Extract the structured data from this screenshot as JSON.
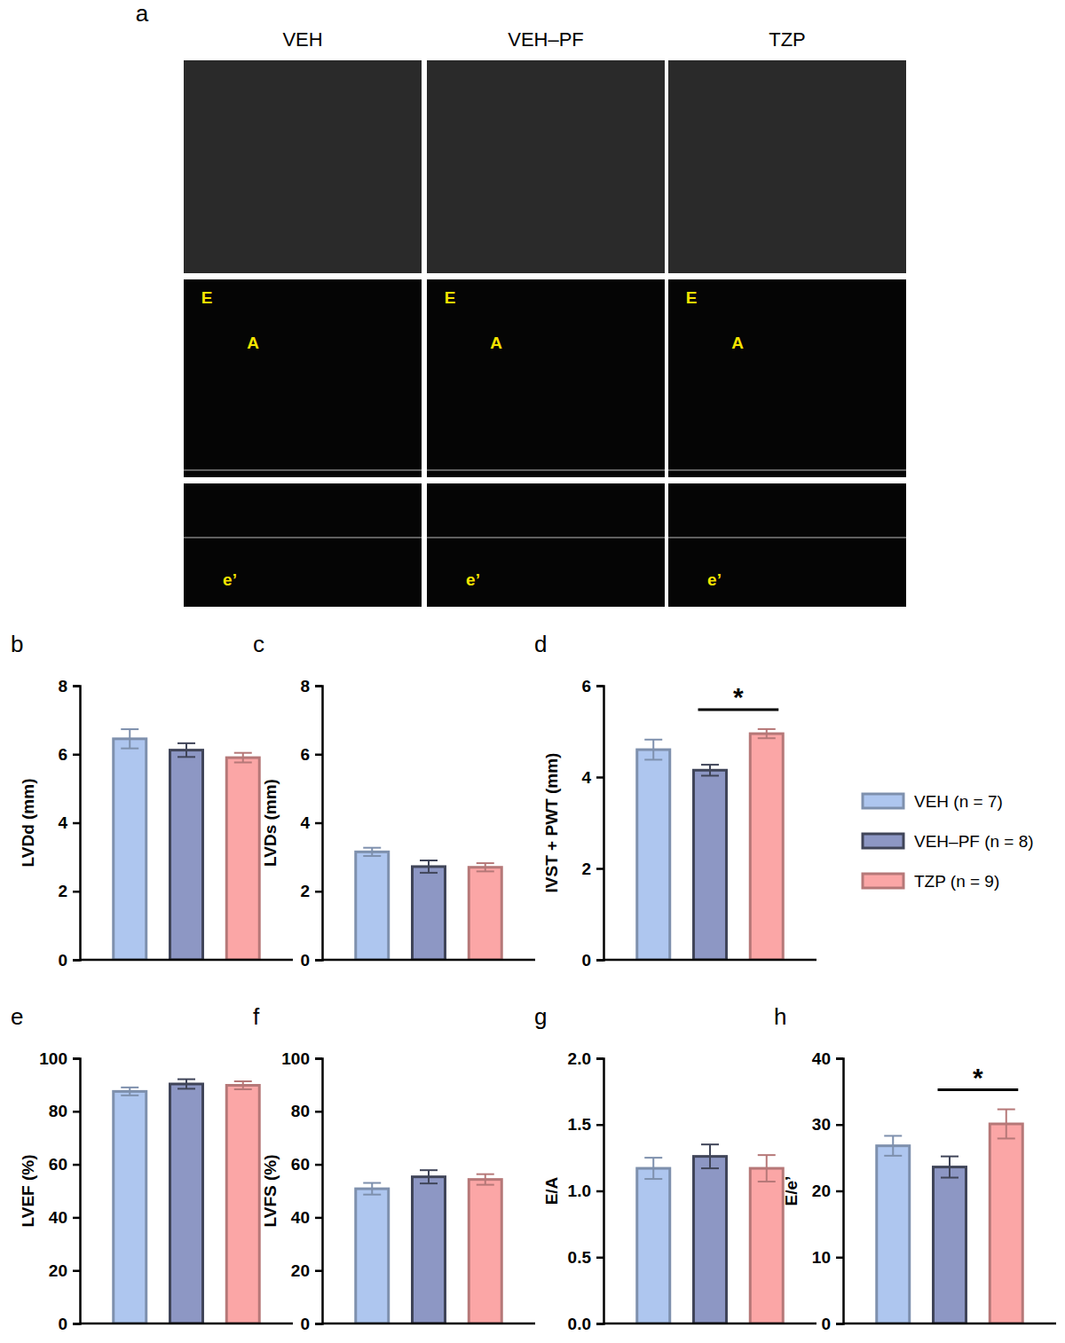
{
  "panel_a": {
    "letter": "a",
    "columns": [
      "VEH",
      "VEH–PF",
      "TZP"
    ],
    "wave_labels": [
      "E",
      "A",
      "e’"
    ]
  },
  "groups": [
    {
      "name": "VEH (n = 7)",
      "color": "#aec6ef"
    },
    {
      "name": "VEH–PF (n = 8)",
      "color": "#8d97c4"
    },
    {
      "name": "TZP (n = 9)",
      "color": "#fba6a6"
    }
  ],
  "chart_data": [
    {
      "type": "bar",
      "panel": "b",
      "y_label": "LVDd (mm)",
      "values": [
        6.45,
        6.12,
        5.9
      ],
      "errors": [
        0.28,
        0.2,
        0.14
      ],
      "ylim": [
        0,
        8
      ],
      "yticks": [
        0,
        2,
        4,
        6,
        8
      ],
      "significance": []
    },
    {
      "type": "bar",
      "panel": "c",
      "y_label": "LVDs (mm)",
      "values": [
        3.15,
        2.72,
        2.7
      ],
      "errors": [
        0.12,
        0.18,
        0.12
      ],
      "ylim": [
        0,
        8
      ],
      "yticks": [
        0,
        2,
        4,
        6,
        8
      ],
      "significance": []
    },
    {
      "type": "bar",
      "panel": "d",
      "y_label": "IVST + PWT (mm)",
      "values": [
        4.6,
        4.15,
        4.95
      ],
      "errors": [
        0.22,
        0.12,
        0.1
      ],
      "ylim": [
        0,
        6
      ],
      "yticks": [
        0,
        2,
        4,
        6
      ],
      "significance": [
        {
          "groups": [
            1,
            2
          ],
          "label": "*"
        }
      ]
    },
    {
      "type": "bar",
      "panel": "e",
      "y_label": "LVEF (%)",
      "values": [
        87.5,
        90.3,
        89.8
      ],
      "errors": [
        1.5,
        1.8,
        1.5
      ],
      "ylim": [
        0,
        100
      ],
      "yticks": [
        0,
        20,
        40,
        60,
        80,
        100
      ],
      "significance": []
    },
    {
      "type": "bar",
      "panel": "f",
      "y_label": "LVFS (%)",
      "values": [
        50.8,
        55.3,
        54.3
      ],
      "errors": [
        2.2,
        2.5,
        2.0
      ],
      "ylim": [
        0,
        100
      ],
      "yticks": [
        0,
        20,
        40,
        60,
        80,
        100
      ],
      "significance": []
    },
    {
      "type": "bar",
      "panel": "g",
      "y_label": "E/A",
      "values": [
        1.17,
        1.26,
        1.17
      ],
      "errors": [
        0.08,
        0.09,
        0.1
      ],
      "ylim": [
        0,
        2
      ],
      "yticks": [
        {
          "value": 0,
          "label": "0.0"
        },
        {
          "value": 0.5,
          "label": "0.5"
        },
        {
          "value": 1,
          "label": "1.0"
        },
        {
          "value": 1.5,
          "label": "1.5"
        },
        {
          "value": 2,
          "label": "2.0"
        }
      ],
      "significance": []
    },
    {
      "type": "bar",
      "panel": "h",
      "y_label": "E/e’",
      "values": [
        26.8,
        23.6,
        30.1
      ],
      "errors": [
        1.5,
        1.6,
        2.2
      ],
      "ylim": [
        0,
        40
      ],
      "yticks": [
        0,
        10,
        20,
        30,
        40
      ],
      "significance": [
        {
          "groups": [
            1,
            2
          ],
          "label": "*"
        }
      ]
    }
  ]
}
